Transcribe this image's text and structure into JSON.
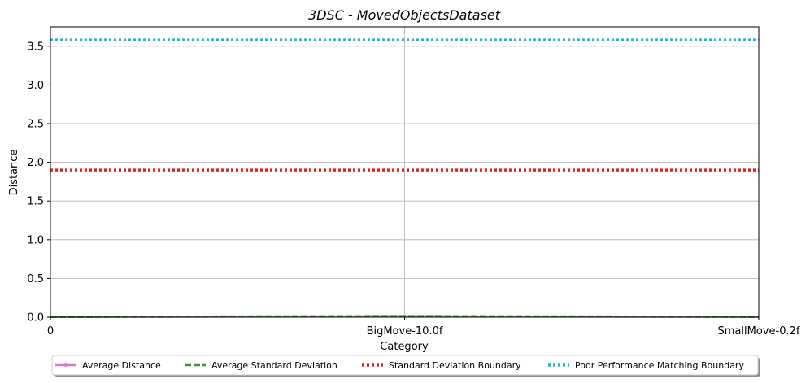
{
  "chart_data": {
    "type": "line",
    "title": "3DSC - MovedObjectsDataset",
    "xlabel": "Category",
    "ylabel": "Distance",
    "categories": [
      "0",
      "BigMove-10.0f",
      "SmallMove-0.2f"
    ],
    "ylim": [
      0,
      3.75
    ],
    "yticks": [
      "0.0",
      "0.5",
      "1.0",
      "1.5",
      "2.0",
      "2.5",
      "3.0",
      "3.5"
    ],
    "grid": true,
    "legend_position": "bottom-center",
    "series": [
      {
        "name": "Average Distance",
        "values": [
          0.005,
          0.01,
          0.005
        ],
        "color": "#e377c2",
        "style": "solid-marker"
      },
      {
        "name": "Average Standard Deviation",
        "values": [
          0.003,
          0.015,
          0.004
        ],
        "color": "#2ca02c",
        "style": "dashed"
      },
      {
        "name": "Standard Deviation Boundary",
        "values": [
          1.9,
          1.9,
          1.9
        ],
        "color": "#d62728",
        "style": "dotted"
      },
      {
        "name": "Poor Performance Matching Boundary",
        "values": [
          3.58,
          3.58,
          3.58
        ],
        "color": "#17becf",
        "style": "dotted"
      }
    ]
  }
}
